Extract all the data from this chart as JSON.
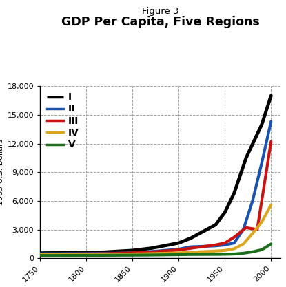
{
  "title_top": "Figure 3",
  "title_main": "GDP Per Capita, Five Regions",
  "ylabel": "1985 U.S. Dollars",
  "xlim": [
    1750,
    2010
  ],
  "ylim": [
    0,
    18000
  ],
  "xticks": [
    1750,
    1800,
    1850,
    1900,
    1950,
    2000
  ],
  "yticks": [
    0,
    3000,
    6000,
    9000,
    12000,
    15000,
    18000
  ],
  "background_color": "#ffffff",
  "series": [
    {
      "label": "I",
      "color": "#000000",
      "lw": 3.5,
      "linestyle": "solid",
      "legend_dashes": [
        7,
        3
      ],
      "data": {
        "years": [
          1750,
          1800,
          1820,
          1850,
          1870,
          1900,
          1913,
          1940,
          1950,
          1960,
          1973,
          1990,
          2000
        ],
        "values": [
          550,
          600,
          650,
          820,
          1050,
          1600,
          2100,
          3500,
          4800,
          6800,
          10500,
          14000,
          17000
        ]
      }
    },
    {
      "label": "II",
      "color": "#1a52b0",
      "lw": 3.0,
      "linestyle": "solid",
      "legend_dashes": [
        5,
        2
      ],
      "data": {
        "years": [
          1750,
          1800,
          1820,
          1850,
          1870,
          1900,
          1913,
          1940,
          1950,
          1960,
          1970,
          1980,
          1990,
          2000
        ],
        "values": [
          480,
          500,
          520,
          580,
          700,
          950,
          1200,
          1300,
          1400,
          1600,
          3000,
          6000,
          10000,
          14300
        ]
      }
    },
    {
      "label": "III",
      "color": "#cc1111",
      "lw": 3.0,
      "linestyle": "solid",
      "legend_dashes": [
        5,
        2
      ],
      "data": {
        "years": [
          1750,
          1800,
          1820,
          1850,
          1870,
          1900,
          1913,
          1940,
          1950,
          1960,
          1973,
          1985,
          2000
        ],
        "values": [
          440,
          460,
          480,
          570,
          660,
          870,
          1050,
          1400,
          1600,
          2200,
          3200,
          3000,
          12200
        ]
      }
    },
    {
      "label": "IV",
      "color": "#dba520",
      "lw": 3.0,
      "linestyle": "solid",
      "legend_dashes": [
        5,
        2
      ],
      "data": {
        "years": [
          1750,
          1800,
          1820,
          1850,
          1870,
          1900,
          1913,
          1940,
          1950,
          1960,
          1970,
          1980,
          1990,
          2000
        ],
        "values": [
          400,
          410,
          425,
          450,
          490,
          560,
          630,
          760,
          820,
          1000,
          1500,
          2600,
          3800,
          5600
        ]
      }
    },
    {
      "label": "V",
      "color": "#1a6e1a",
      "lw": 3.0,
      "linestyle": "solid",
      "legend_dashes": [
        5,
        2
      ],
      "data": {
        "years": [
          1750,
          1800,
          1820,
          1850,
          1870,
          1900,
          1913,
          1940,
          1950,
          1960,
          1970,
          1980,
          1990,
          2000
        ],
        "values": [
          300,
          310,
          315,
          330,
          345,
          380,
          400,
          410,
          420,
          450,
          530,
          680,
          900,
          1500
        ]
      }
    }
  ]
}
